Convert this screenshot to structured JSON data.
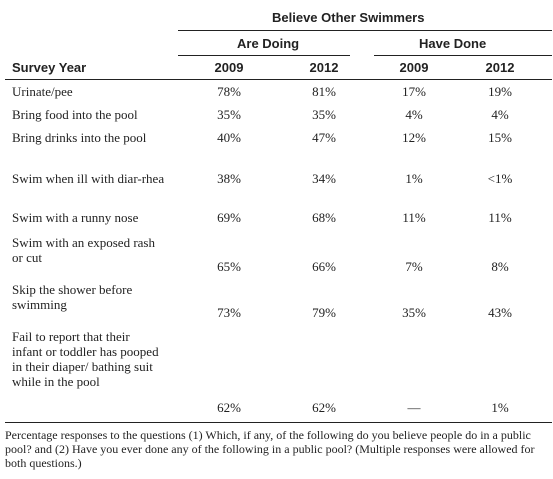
{
  "header": {
    "group_title": "Believe Other Swimmers",
    "subgroups": [
      "Are Doing",
      "Have Done"
    ],
    "row_header": "Survey Year",
    "years": [
      "2009",
      "2012",
      "2009",
      "2012"
    ]
  },
  "rows": [
    {
      "label": "Urinate/pee",
      "values": [
        "78%",
        "81%",
        "17%",
        "19%"
      ]
    },
    {
      "label": "Bring food into the pool",
      "values": [
        "35%",
        "35%",
        "4%",
        "4%"
      ]
    },
    {
      "label": "Bring drinks into the pool",
      "values": [
        "40%",
        "47%",
        "12%",
        "15%"
      ]
    },
    {
      "label": "Swim when ill with diar-rhea",
      "values": [
        "38%",
        "34%",
        "1%",
        "<1%"
      ]
    },
    {
      "label": "Swim with a runny nose",
      "values": [
        "69%",
        "68%",
        "11%",
        "11%"
      ]
    },
    {
      "label": "Swim with an exposed rash or cut",
      "values": [
        "65%",
        "66%",
        "7%",
        "8%"
      ]
    },
    {
      "label": "Skip the shower before swimming",
      "values": [
        "73%",
        "79%",
        "35%",
        "43%"
      ]
    },
    {
      "label": "Fail to report that their infant or toddler has pooped in their diaper/ bathing suit while in the pool",
      "values": [
        "62%",
        "62%",
        "—",
        "1%"
      ]
    }
  ],
  "footnote": "Percentage responses to the questions (1) Which, if any, of the following do you believe people do in a public pool? and (2) Have you ever done any of the following in a public pool? (Multiple responses were allowed for both questions.)"
}
